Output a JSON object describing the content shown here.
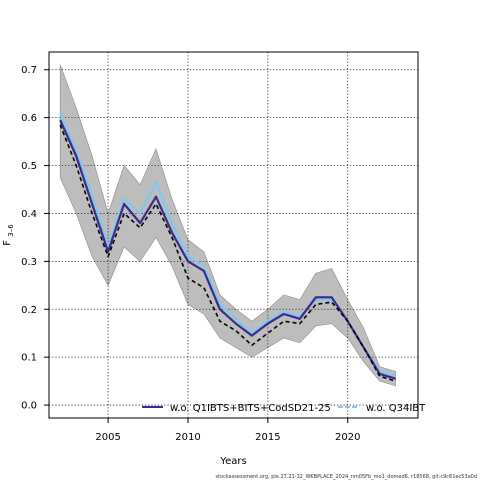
{
  "chart_data": {
    "type": "line",
    "xlabel": "Years",
    "ylabel_main": "F",
    "ylabel_sub": "3–6",
    "xlim": [
      2001.3,
      2024.4
    ],
    "ylim": [
      -0.027,
      0.737
    ],
    "xticks": [
      2005,
      2010,
      2015,
      2020
    ],
    "yticks": [
      0.0,
      0.1,
      0.2,
      0.3,
      0.4,
      0.5,
      0.6,
      0.7
    ],
    "ytick_labels": [
      "0.0",
      "0.1",
      "0.2",
      "0.3",
      "0.4",
      "0.5",
      "0.6",
      "0.7"
    ],
    "grid": true,
    "legend_position": "bottom",
    "footer": "stockassessment.org, ple.27.21-32_WKBPLACE_2024_nm05Fb_mo1_domed6, r18568, git:c9c61ec53a0d",
    "x": [
      2002,
      2003,
      2004,
      2005,
      2006,
      2007,
      2008,
      2009,
      2010,
      2011,
      2012,
      2013,
      2014,
      2015,
      2016,
      2017,
      2018,
      2019,
      2020,
      2021,
      2022,
      2023
    ],
    "band": {
      "upper": [
        0.71,
        0.62,
        0.52,
        0.4,
        0.5,
        0.46,
        0.535,
        0.43,
        0.345,
        0.32,
        0.23,
        0.2,
        0.175,
        0.2,
        0.23,
        0.22,
        0.275,
        0.285,
        0.22,
        0.16,
        0.08,
        0.07
      ],
      "lower": [
        0.475,
        0.4,
        0.31,
        0.25,
        0.33,
        0.3,
        0.35,
        0.29,
        0.21,
        0.19,
        0.14,
        0.12,
        0.1,
        0.12,
        0.14,
        0.13,
        0.165,
        0.17,
        0.14,
        0.09,
        0.05,
        0.04
      ]
    },
    "series": [
      {
        "name": "",
        "color": "#000000",
        "style": "dashed",
        "values": [
          0.585,
          0.5,
          0.4,
          0.31,
          0.4,
          0.37,
          0.42,
          0.35,
          0.265,
          0.245,
          0.175,
          0.155,
          0.125,
          0.15,
          0.175,
          0.17,
          0.21,
          0.215,
          0.175,
          0.12,
          0.06,
          0.05
        ]
      },
      {
        "name": "w.o. Q1IBTS+BITS+CodSD21-25",
        "color": "#3d2a8c",
        "style": "solid",
        "values": [
          0.595,
          0.52,
          0.42,
          0.32,
          0.42,
          0.38,
          0.435,
          0.36,
          0.3,
          0.28,
          0.2,
          0.17,
          0.145,
          0.17,
          0.19,
          0.18,
          0.225,
          0.225,
          0.175,
          0.12,
          0.065,
          0.055
        ]
      },
      {
        "name": "w.o. Q34IBT",
        "color": "#7ec8ef",
        "style": "solid",
        "values": [
          0.61,
          0.53,
          0.44,
          0.33,
          0.43,
          0.4,
          0.465,
          0.38,
          0.31,
          0.29,
          0.21,
          0.18,
          0.15,
          0.175,
          0.195,
          0.185,
          0.22,
          0.22,
          0.175,
          0.12,
          0.07,
          0.06
        ]
      }
    ]
  }
}
